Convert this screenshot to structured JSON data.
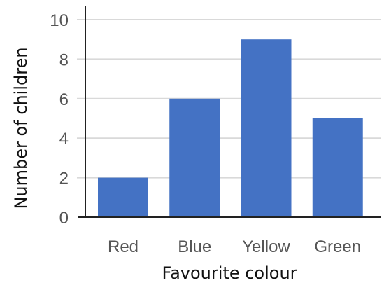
{
  "chart_data": {
    "type": "bar",
    "title": "",
    "xlabel": "Favourite colour",
    "ylabel": "Number of children",
    "categories": [
      "Red",
      "Blue",
      "Yellow",
      "Green"
    ],
    "values": [
      2,
      6,
      9,
      5
    ],
    "ylim": [
      0,
      10
    ],
    "yticks": [
      "0",
      "2",
      "4",
      "6",
      "8",
      "10"
    ],
    "grid": true,
    "legend": "none",
    "bar_color": "#4472C4",
    "grid_color": "#d9d9d9",
    "axis_color": "#222222"
  }
}
